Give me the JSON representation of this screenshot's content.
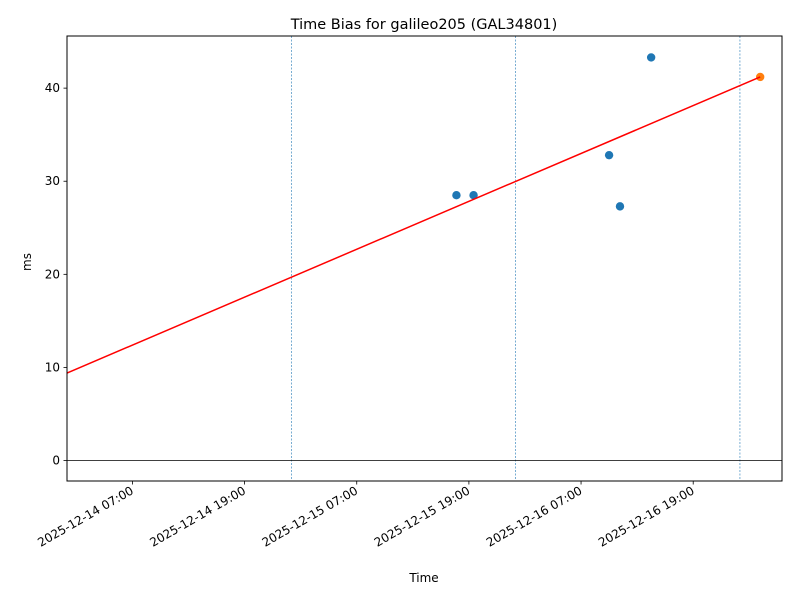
{
  "chart_data": {
    "type": "scatter",
    "title": "Time Bias for galileo205 (GAL34801)",
    "xlabel": "Time",
    "ylabel": "ms",
    "x_type": "datetime",
    "xlim": [
      "2025-12-14 00:00",
      "2025-12-17 04:30"
    ],
    "ylim": [
      -2.2,
      45.6
    ],
    "x_ticks": [
      "2025-12-14 07:00",
      "2025-12-14 19:00",
      "2025-12-15 07:00",
      "2025-12-15 19:00",
      "2025-12-16 07:00",
      "2025-12-16 19:00"
    ],
    "y_ticks": [
      0,
      10,
      20,
      30,
      40
    ],
    "grid": false,
    "reference_lines": {
      "horizontal_y": 0,
      "vertical_dashed_x": [
        "2025-12-14 00:00",
        "2025-12-15 00:00",
        "2025-12-16 00:00",
        "2025-12-17 00:00"
      ]
    },
    "series": [
      {
        "kind": "points",
        "color": "#1f77b4",
        "points": [
          {
            "x": "2025-12-15 17:40",
            "y": 28.5
          },
          {
            "x": "2025-12-15 19:30",
            "y": 28.5
          },
          {
            "x": "2025-12-16 10:00",
            "y": 32.8
          },
          {
            "x": "2025-12-16 11:10",
            "y": 27.3
          },
          {
            "x": "2025-12-16 14:30",
            "y": 43.3
          }
        ]
      },
      {
        "kind": "points",
        "color": "#ff7f0e",
        "points": [
          {
            "x": "2025-12-17 02:10",
            "y": 41.2
          }
        ]
      },
      {
        "kind": "line",
        "color": "#ff0000",
        "points": [
          {
            "x": "2025-12-14 00:00",
            "y": 9.4
          },
          {
            "x": "2025-12-17 02:10",
            "y": 41.2
          }
        ]
      }
    ]
  }
}
